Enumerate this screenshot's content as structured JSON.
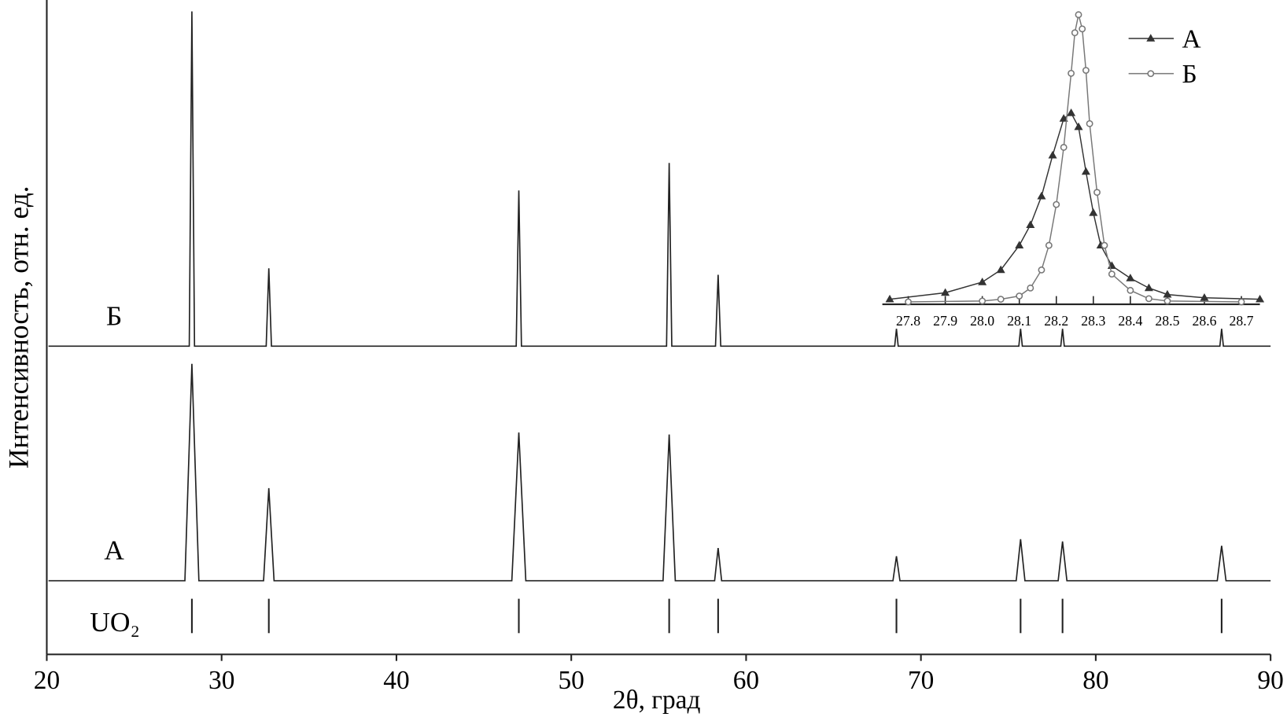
{
  "chart_data": [
    {
      "type": "line",
      "xlabel": "2θ, град",
      "ylabel": "Интенсивность, отн. ед.",
      "xlim": [
        20,
        90
      ],
      "xticks": [
        20,
        30,
        40,
        50,
        60,
        70,
        80,
        90
      ],
      "ylim": [
        0,
        100
      ],
      "series": [
        {
          "name": "А",
          "color": "#222222",
          "x": [
            20.1,
            27.9,
            28.3,
            28.7,
            32.4,
            32.7,
            33.0,
            46.6,
            47.0,
            47.4,
            55.25,
            55.6,
            55.95,
            58.2,
            58.4,
            58.6,
            68.4,
            68.6,
            68.8,
            75.45,
            75.7,
            75.95,
            77.85,
            78.1,
            78.35,
            86.95,
            87.2,
            87.45,
            90
          ],
          "values": [
            11.25,
            11.25,
            44.4,
            11.25,
            11.25,
            25.4,
            11.25,
            11.25,
            33.9,
            11.25,
            11.25,
            33.6,
            11.25,
            11.25,
            16.25,
            11.25,
            11.25,
            15,
            11.25,
            11.25,
            17.6,
            11.25,
            11.25,
            17.25,
            11.25,
            11.25,
            16.6,
            11.25,
            11.25
          ]
        },
        {
          "name": "Б",
          "color": "#222222",
          "x": [
            20.1,
            28.15,
            28.3,
            28.45,
            32.55,
            32.7,
            32.85,
            46.85,
            47.0,
            47.15,
            55.45,
            55.6,
            55.75,
            58.25,
            58.4,
            58.55,
            68.5,
            68.6,
            68.7,
            75.6,
            75.7,
            75.8,
            78.0,
            78.1,
            78.2,
            87.1,
            87.2,
            87.3,
            90
          ],
          "values": [
            47.1,
            47.1,
            98.25,
            47.1,
            47.1,
            59,
            47.1,
            47.1,
            70.9,
            47.1,
            47.1,
            75.1,
            47.1,
            47.1,
            58,
            47.1,
            47.1,
            49.75,
            47.1,
            47.1,
            49.75,
            47.1,
            47.1,
            49.75,
            47.1,
            47.1,
            49.75,
            47.1,
            47.1
          ]
        }
      ],
      "reference": {
        "name": "UO₂",
        "x": [
          28.3,
          32.7,
          47.0,
          55.6,
          58.4,
          68.6,
          75.7,
          78.1,
          87.2
        ],
        "color": "#222222"
      }
    },
    {
      "type": "line",
      "xlim": [
        27.73,
        28.75
      ],
      "xticks": [
        27.8,
        27.9,
        {
          "value": 28,
          "label": "28.0"
        },
        28.1,
        28.2,
        28.3,
        28.4,
        28.5,
        28.6,
        28.7
      ],
      "ylim": [
        0,
        100
      ],
      "legend": "top-right",
      "series": [
        {
          "name": "А",
          "color": "#333333",
          "marker": "triangle",
          "x": [
            27.75,
            27.9,
            28.0,
            28.05,
            28.1,
            28.13,
            28.16,
            28.19,
            28.22,
            28.24,
            28.26,
            28.28,
            28.3,
            28.32,
            28.35,
            28.4,
            28.45,
            28.5,
            28.6,
            28.75
          ],
          "values": [
            1.7,
            3.9,
            7.5,
            11.6,
            19.9,
            26.8,
            36.5,
            50.3,
            62.7,
            64.6,
            59.9,
            44.8,
            30.9,
            19.9,
            13,
            8.8,
            5.5,
            3.3,
            2.2,
            1.7
          ]
        },
        {
          "name": "Б",
          "color": "#777777",
          "marker": "circle",
          "x": [
            27.8,
            28.0,
            28.05,
            28.1,
            28.13,
            28.16,
            28.18,
            28.2,
            28.22,
            28.24,
            28.25,
            28.26,
            28.27,
            28.28,
            28.29,
            28.31,
            28.33,
            28.35,
            28.4,
            28.45,
            28.5,
            28.7
          ],
          "values": [
            0.8,
            1.1,
            1.7,
            2.8,
            5.5,
            11.6,
            19.9,
            33.7,
            53,
            78,
            91.7,
            97.8,
            93,
            79,
            61,
            37.8,
            19.9,
            10.2,
            4.7,
            1.9,
            1.1,
            0.8
          ]
        }
      ]
    }
  ]
}
